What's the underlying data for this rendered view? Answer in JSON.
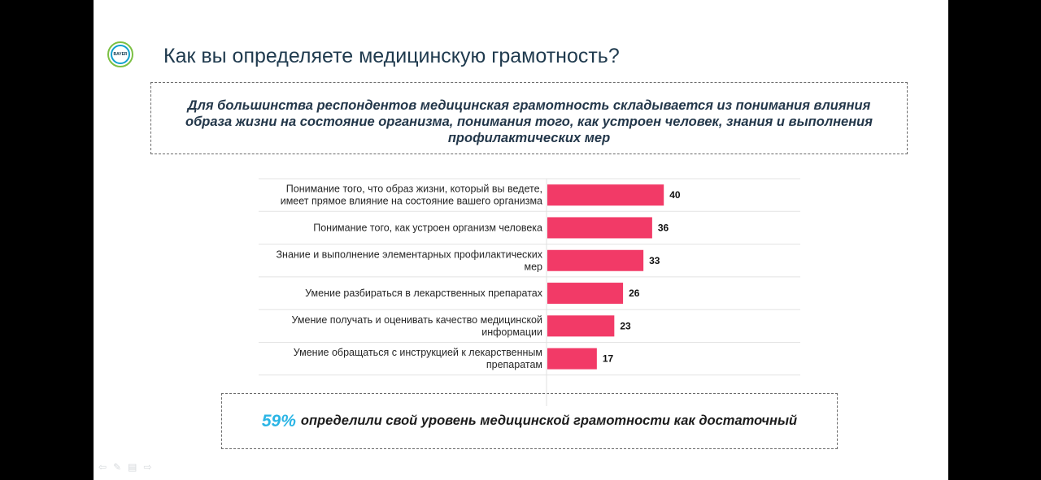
{
  "slide": {
    "logo_text": "BAYER",
    "title": "Как вы определяете медицинскую грамотность?",
    "callout": "Для большинства респондентов медицинская грамотность складывается из понимания влияния образа жизни на состояние организма, понимания того, как устроен человек, знания и выполнения профилактических мер",
    "bottom_percent": "59%",
    "bottom_text": "определили свой уровень медицинской грамотности как достаточный"
  },
  "chart_data": {
    "type": "bar",
    "orientation": "horizontal",
    "categories": [
      [
        "Понимание того, что образ жизни, который вы ведете,",
        "имеет прямое влияние на состояние вашего организма"
      ],
      [
        "Понимание того, как устроен организм человека"
      ],
      [
        "Знание и выполнение элементарных профилактических",
        "мер"
      ],
      [
        "Умение разбираться в лекарственных препаратах"
      ],
      [
        "Умение получать и оценивать качество медицинской",
        "информации"
      ],
      [
        "Умение обращаться с инструкцией к лекарственным",
        "препаратам"
      ]
    ],
    "values": [
      40,
      36,
      33,
      26,
      23,
      17
    ],
    "bar_color": "#f23a67",
    "grid": true
  },
  "icons": {
    "nav": [
      "arrow-left-icon",
      "pen-icon",
      "screen-icon",
      "arrow-right-icon"
    ]
  }
}
